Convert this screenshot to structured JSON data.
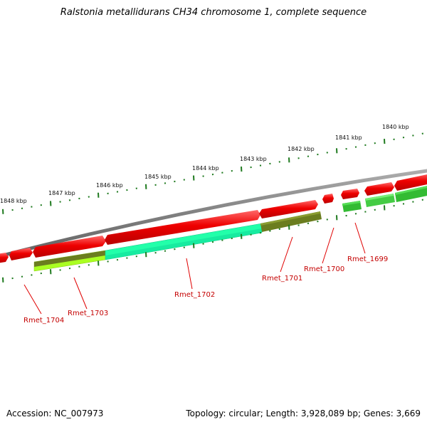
{
  "title": "Ralstonia metallidurans CH34 chromosome 1, complete sequence",
  "accession": "Accession: NC_007973",
  "topology": "Topology: circular; Length: 3,928,089 bp; Genes: 3,669",
  "kbp_labels": [
    "1848 kbp",
    "1847 kbp",
    "1846 kbp",
    "1845 kbp",
    "1844 kbp",
    "1843 kbp",
    "1842 kbp",
    "1841 kbp",
    "1840 kbp"
  ],
  "gene_labels": [
    "Rmet_1704",
    "Rmet_1703",
    "Rmet_1702",
    "Rmet_1701",
    "Rmet_1700",
    "Rmet_1699"
  ],
  "colors": {
    "backbone": "#808080",
    "forward_strand": "#e60000",
    "reverse_light_green": "#aaff22",
    "reverse_olive": "#6b7d1f",
    "reverse_cyan_green": "#22ffaa",
    "reverse_green": "#33bb33",
    "tick": "#1f7a1f",
    "label": "#c40000"
  }
}
